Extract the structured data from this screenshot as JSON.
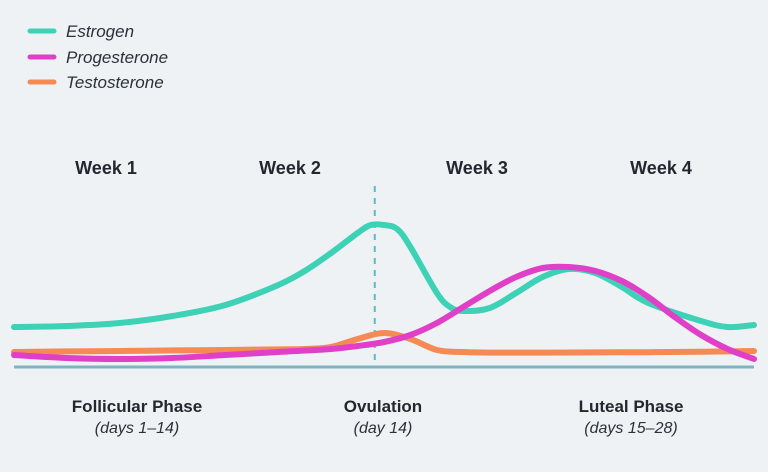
{
  "chart_data": {
    "type": "line",
    "title": "",
    "xlabel": "",
    "ylabel": "",
    "x_unit": "day",
    "xlim": [
      0,
      28
    ],
    "ylim": [
      0,
      100
    ],
    "grid": false,
    "legend_position": "top-left",
    "ovulation_day": 14,
    "weeks": [
      "Week 1",
      "Week 2",
      "Week 3",
      "Week 4"
    ],
    "phases": [
      {
        "name": "Follicular Phase",
        "range": "(days 1–14)"
      },
      {
        "name": "Ovulation",
        "range": "(day 14)"
      },
      {
        "name": "Luteal Phase",
        "range": "(days 15–28)"
      }
    ],
    "series": [
      {
        "name": "Estrogen",
        "color": "#3dd1b5",
        "x": [
          0,
          2,
          4,
          6,
          8,
          10,
          11,
          12,
          13,
          13.5,
          14,
          14.5,
          15,
          16,
          16.5,
          17,
          18,
          19,
          20,
          21,
          22,
          23,
          24,
          26,
          27,
          28
        ],
        "y": [
          20,
          20.5,
          22,
          25.5,
          31,
          41,
          48,
          57,
          67,
          71,
          71,
          69,
          60,
          37,
          30,
          28,
          29.5,
          37,
          45,
          49,
          47,
          40,
          32,
          23,
          20,
          21
        ]
      },
      {
        "name": "Progesterone",
        "color": "#e040c8",
        "x": [
          0,
          2,
          4,
          6,
          8,
          10,
          12,
          13,
          14,
          15,
          16,
          17,
          18,
          19,
          20,
          21,
          22,
          23,
          24,
          25,
          26,
          27,
          28
        ],
        "y": [
          6,
          4.5,
          4,
          4.5,
          6,
          7.5,
          9,
          10.5,
          12.5,
          16,
          22,
          30,
          38,
          45,
          49.5,
          50,
          48,
          43,
          35,
          25,
          16,
          9,
          4
        ]
      },
      {
        "name": "Testosterone",
        "color": "#f58a55",
        "x": [
          0,
          2,
          4,
          6,
          8,
          10,
          11,
          12,
          13,
          14,
          15,
          16,
          17,
          18,
          20,
          22,
          24,
          26,
          28
        ],
        "y": [
          7.5,
          7.8,
          8,
          8.3,
          8.5,
          8.8,
          9,
          10,
          14,
          17,
          14,
          8.5,
          7.5,
          7.2,
          7.2,
          7.3,
          7.4,
          7.6,
          8
        ]
      }
    ]
  }
}
